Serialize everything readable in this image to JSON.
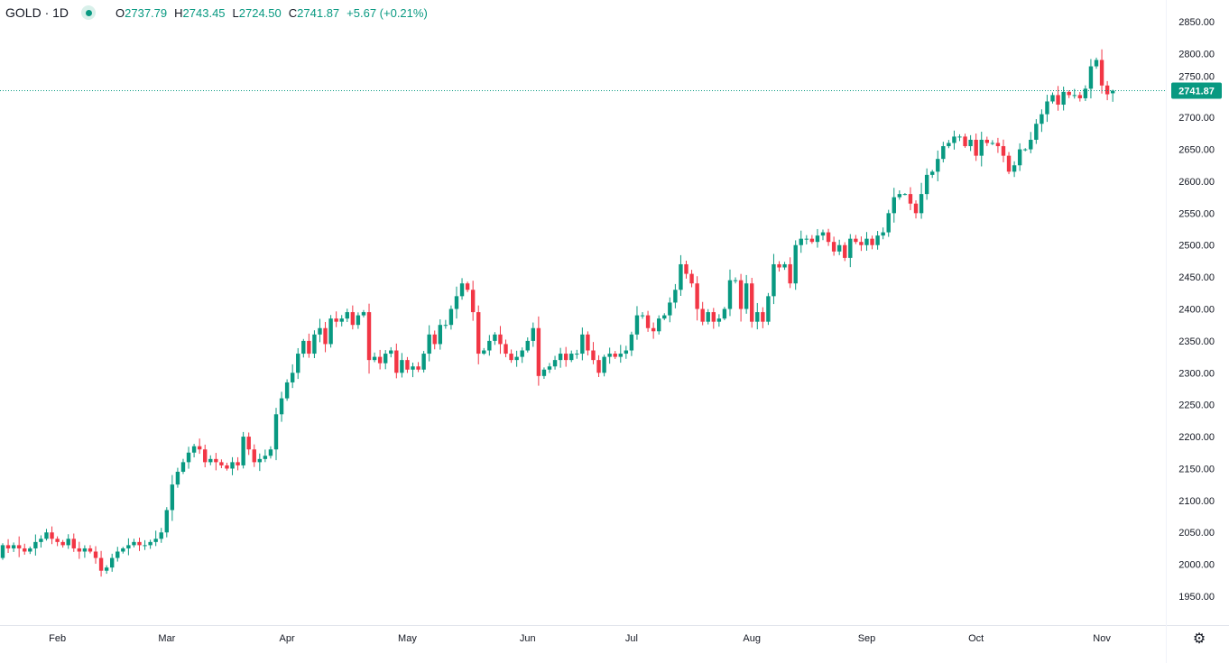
{
  "header": {
    "symbol": "GOLD · 1D",
    "open_label": "O",
    "open": "2737.79",
    "high_label": "H",
    "high": "2743.45",
    "low_label": "L",
    "low": "2724.50",
    "close_label": "C",
    "close": "2741.87",
    "change": "+5.67 (+0.21%)"
  },
  "colors": {
    "up": "#089981",
    "down": "#F23645",
    "text": "#131722",
    "grid": "#e0e3eb"
  },
  "chart_data": {
    "type": "candlestick",
    "title": "GOLD · 1D",
    "last_price": 2741.87,
    "last_price_label": "2741.87",
    "last_candle": {
      "open": 2737.79,
      "high": 2743.45,
      "low": 2724.5,
      "close": 2741.87
    },
    "ylim": [
      1910,
      2870
    ],
    "y_ticks": [
      "1950.00",
      "2000.00",
      "2050.00",
      "2100.00",
      "2150.00",
      "2200.00",
      "2250.00",
      "2300.00",
      "2350.00",
      "2400.00",
      "2450.00",
      "2500.00",
      "2550.00",
      "2600.00",
      "2650.00",
      "2700.00",
      "2750.00",
      "2800.00",
      "2850.00"
    ],
    "x_labels": [
      {
        "label": "Feb",
        "index": 10
      },
      {
        "label": "Mar",
        "index": 30
      },
      {
        "label": "Apr",
        "index": 52
      },
      {
        "label": "May",
        "index": 74
      },
      {
        "label": "Jun",
        "index": 96
      },
      {
        "label": "Jul",
        "index": 115
      },
      {
        "label": "Aug",
        "index": 137
      },
      {
        "label": "Sep",
        "index": 158
      },
      {
        "label": "Oct",
        "index": 178
      },
      {
        "label": "Nov",
        "index": 201
      }
    ],
    "first_open": 2010,
    "close": [
      2030,
      2025,
      2030,
      2025,
      2020,
      2025,
      2035,
      2040,
      2050,
      2040,
      2035,
      2030,
      2040,
      2025,
      2020,
      2025,
      2020,
      2010,
      1990,
      1995,
      2010,
      2020,
      2025,
      2030,
      2035,
      2030,
      2030,
      2035,
      2040,
      2050,
      2085,
      2125,
      2145,
      2160,
      2175,
      2185,
      2180,
      2160,
      2165,
      2160,
      2155,
      2150,
      2160,
      2155,
      2200,
      2180,
      2160,
      2165,
      2170,
      2180,
      2235,
      2260,
      2285,
      2300,
      2330,
      2350,
      2330,
      2360,
      2370,
      2345,
      2385,
      2380,
      2385,
      2395,
      2375,
      2390,
      2395,
      2320,
      2325,
      2315,
      2330,
      2335,
      2300,
      2320,
      2305,
      2310,
      2305,
      2330,
      2360,
      2345,
      2375,
      2375,
      2400,
      2420,
      2440,
      2430,
      2395,
      2330,
      2335,
      2350,
      2360,
      2345,
      2330,
      2320,
      2325,
      2335,
      2350,
      2370,
      2295,
      2305,
      2310,
      2320,
      2330,
      2320,
      2330,
      2330,
      2360,
      2335,
      2320,
      2300,
      2325,
      2330,
      2325,
      2330,
      2335,
      2360,
      2390,
      2390,
      2370,
      2365,
      2385,
      2390,
      2410,
      2430,
      2470,
      2455,
      2440,
      2400,
      2380,
      2395,
      2380,
      2385,
      2400,
      2445,
      2445,
      2400,
      2440,
      2380,
      2395,
      2380,
      2420,
      2470,
      2465,
      2470,
      2440,
      2500,
      2510,
      2510,
      2505,
      2515,
      2520,
      2505,
      2490,
      2500,
      2480,
      2510,
      2505,
      2500,
      2510,
      2500,
      2515,
      2520,
      2550,
      2575,
      2580,
      2580,
      2565,
      2550,
      2580,
      2610,
      2615,
      2635,
      2655,
      2660,
      2670,
      2670,
      2655,
      2665,
      2640,
      2665,
      2660,
      2660,
      2655,
      2640,
      2615,
      2625,
      2650,
      2650,
      2665,
      2690,
      2705,
      2725,
      2735,
      2720,
      2740,
      2735,
      2735,
      2730,
      2745,
      2780,
      2790,
      2750,
      2736.2,
      2741.87
    ]
  }
}
